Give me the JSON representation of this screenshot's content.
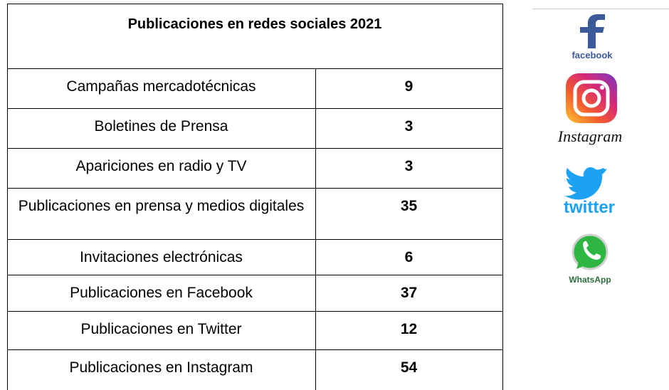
{
  "table": {
    "title": "Publicaciones en redes sociales 2021",
    "rows": [
      [
        "Campañas mercadotécnicas",
        9
      ],
      [
        "Boletines de Prensa",
        3
      ],
      [
        "Apariciones en radio y TV",
        3
      ],
      [
        "Publicaciones en prensa y medios digitales",
        35
      ],
      [
        "Invitaciones electrónicas",
        6
      ],
      [
        "Publicaciones en Facebook",
        37
      ],
      [
        "Publicaciones en Twitter",
        12
      ],
      [
        "Publicaciones en Instagram",
        54
      ]
    ]
  },
  "logos": [
    "facebook",
    "Instagram",
    "twitter",
    "WhatsApp"
  ]
}
